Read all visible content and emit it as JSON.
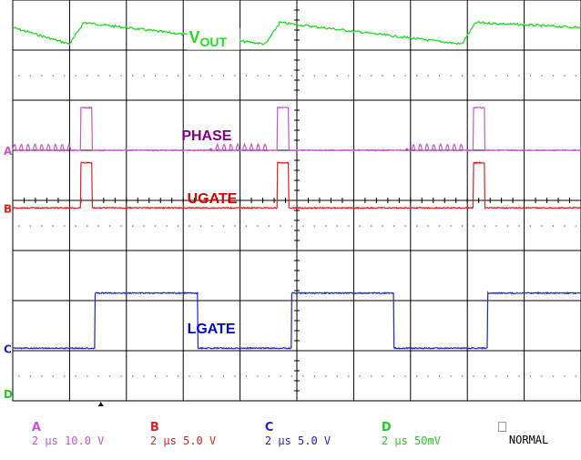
{
  "chart_data": {
    "type": "line",
    "title": "",
    "xlabel": "",
    "ylabel": "",
    "divisions": {
      "x": 10,
      "y": 8
    },
    "grid": true,
    "switching_period_div": 3.45,
    "series": [
      {
        "name": "VOUT",
        "channel": "D",
        "color": "#22dd22",
        "label": {
          "main": "V",
          "sub": "OUT"
        },
        "scale": "50mV/div",
        "description_points_x_div": [
          0.0,
          1.0,
          1.25,
          4.45,
          4.7,
          7.9,
          8.15,
          10.0
        ],
        "values_div": [
          7.45,
          7.12,
          7.55,
          7.12,
          7.55,
          7.12,
          7.55,
          7.45
        ]
      },
      {
        "name": "PHASE",
        "channel": "A",
        "color": "#cc55cc",
        "label_color": "#800080",
        "label": {
          "main": "PHASE"
        },
        "scale": "10.0 V/div",
        "baseline_div": 5.0,
        "high_level_div": 2.15,
        "pulses_x_div": [
          [
            1.2,
            1.4
          ],
          [
            4.65,
            4.85
          ],
          [
            8.1,
            8.3
          ]
        ],
        "ringing_x_div": [
          [
            0.0,
            1.05
          ],
          [
            3.45,
            4.5
          ],
          [
            6.9,
            7.95
          ]
        ]
      },
      {
        "name": "UGATE",
        "channel": "B",
        "color": "#dd2222",
        "label_color": "#dd0000",
        "label": {
          "main": "UGATE"
        },
        "scale": "5.0 V/div",
        "baseline_div": 3.85,
        "high_level_div": 3.2,
        "pulses_x_div": [
          [
            1.2,
            1.4
          ],
          [
            4.65,
            4.85
          ],
          [
            8.1,
            8.3
          ]
        ]
      },
      {
        "name": "LGATE",
        "channel": "C",
        "color": "#2222cc",
        "label_color": "#0000cc",
        "label": {
          "main": "LGATE"
        },
        "scale": "5.0 V/div",
        "baseline_div": 1.05,
        "high_level_div": 2.15,
        "high_x_div": [
          [
            1.45,
            3.25
          ],
          [
            4.9,
            6.7
          ],
          [
            8.35,
            10.0
          ]
        ]
      }
    ],
    "channel_markers": [
      {
        "letter": "A",
        "color": "#cc55cc"
      },
      {
        "letter": "B",
        "color": "#dd2222"
      },
      {
        "letter": "C",
        "color": "#2222cc"
      },
      {
        "letter": "D",
        "color": "#22cc22"
      }
    ]
  },
  "status_bar": {
    "items": [
      {
        "letter": "A",
        "color": "#cc55cc",
        "text": "2 µs 10.0 V"
      },
      {
        "letter": "B",
        "color": "#dd2222",
        "text": "2 µs 5.0 V"
      },
      {
        "letter": "C",
        "color": "#2222cc",
        "text": "2 µs 5.0 V"
      },
      {
        "letter": "D",
        "color": "#22cc22",
        "text": "2 µs 50mV"
      }
    ],
    "mode": "NORMAL"
  }
}
